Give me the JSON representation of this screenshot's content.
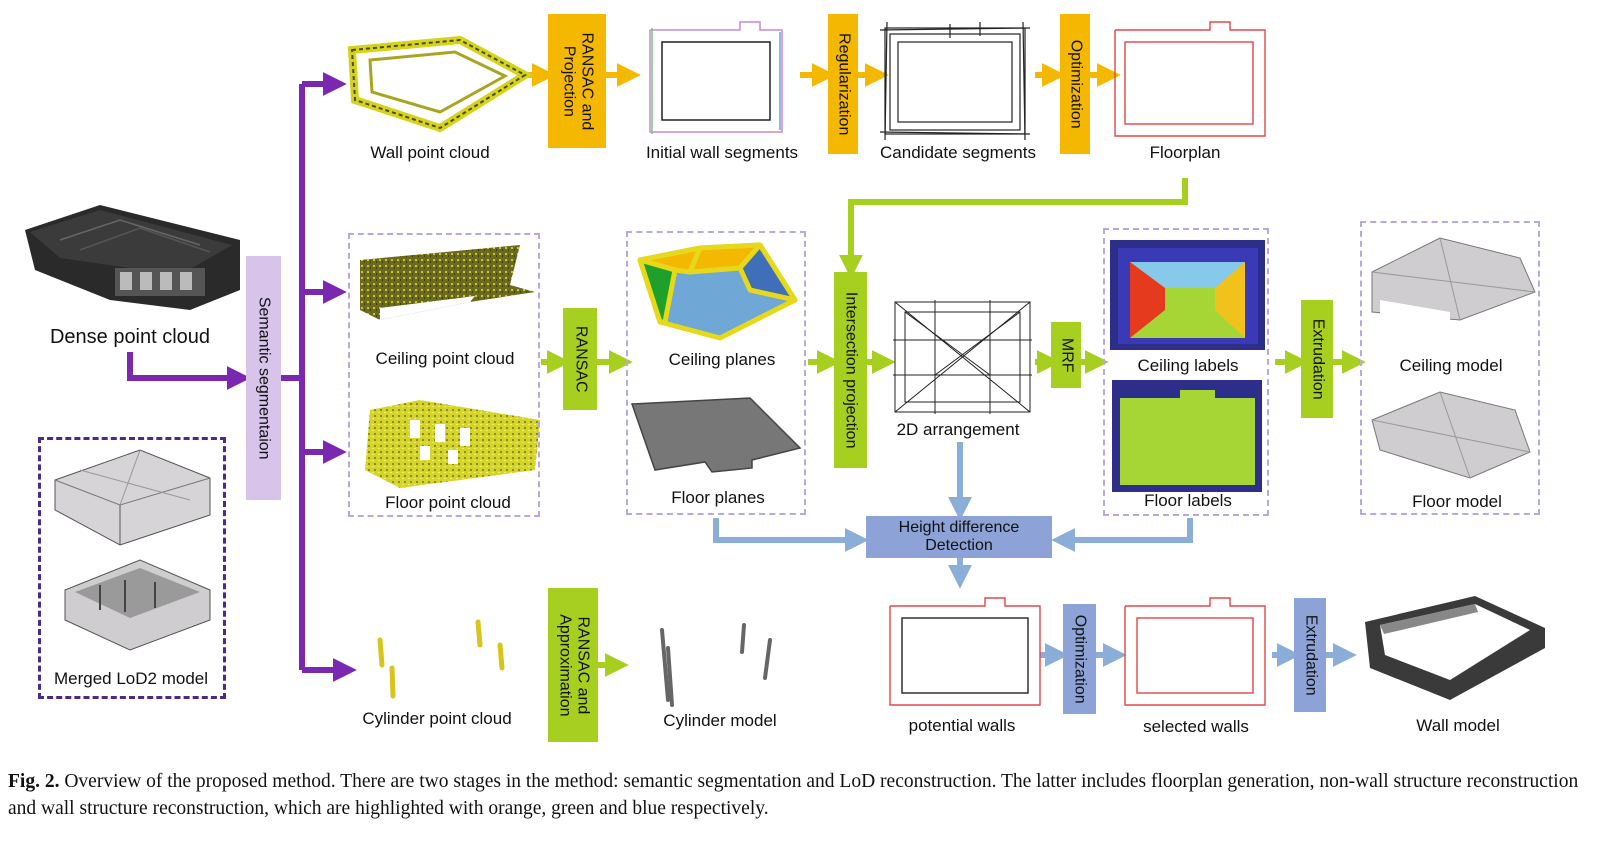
{
  "labels": {
    "dense_point_cloud": "Dense point cloud",
    "merged_model": "Merged LoD2 model",
    "wall_point_cloud": "Wall point cloud",
    "initial_wall_segments": "Initial wall segments",
    "candidate_segments": "Candidate segments",
    "floorplan": "Floorplan",
    "ceiling_point_cloud": "Ceiling point cloud",
    "floor_point_cloud": "Floor point cloud",
    "ceiling_planes": "Ceiling planes",
    "floor_planes": "Floor planes",
    "arrangement_2d": "2D arrangement",
    "ceiling_labels": "Ceiling labels",
    "floor_labels": "Floor labels",
    "ceiling_model": "Ceiling model",
    "floor_model": "Floor model",
    "cylinder_point_cloud": "Cylinder point cloud",
    "cylinder_model": "Cylinder model",
    "potential_walls": "potential walls",
    "selected_walls": "selected walls",
    "wall_model": "Wall model"
  },
  "processes": {
    "semantic_segmentation": "Semantic segmentaion",
    "ransac_projection": "RANSAC and\nProjection",
    "regularization": "Regularization",
    "optimization_top": "Optimization",
    "ransac": "RANSAC",
    "intersection_projection": "Intersection projection",
    "mrf": "MRF",
    "extrudation_top": "Extrudation",
    "height_difference": "Height difference\nDetection",
    "ransac_approximation": "RANSAC and\nApproximation",
    "optimization_bottom": "Optimization",
    "extrudation_bottom": "Extrudation"
  },
  "caption": {
    "prefix": "Fig. 2.",
    "text": "Overview of the proposed method. There are two stages in the method: semantic segmentation and LoD reconstruction. The latter includes floorplan generation, non-wall structure reconstruction and wall structure reconstruction, which are highlighted with orange, green and blue respectively."
  },
  "colors": {
    "purple": "#7a28b0",
    "orange": "#f5b800",
    "green": "#a6cf1f",
    "blue": "#8aaed8",
    "process_blue": "#8da2d6",
    "lavender": "#d8c4ea",
    "floorplan_red": "#e04848"
  }
}
